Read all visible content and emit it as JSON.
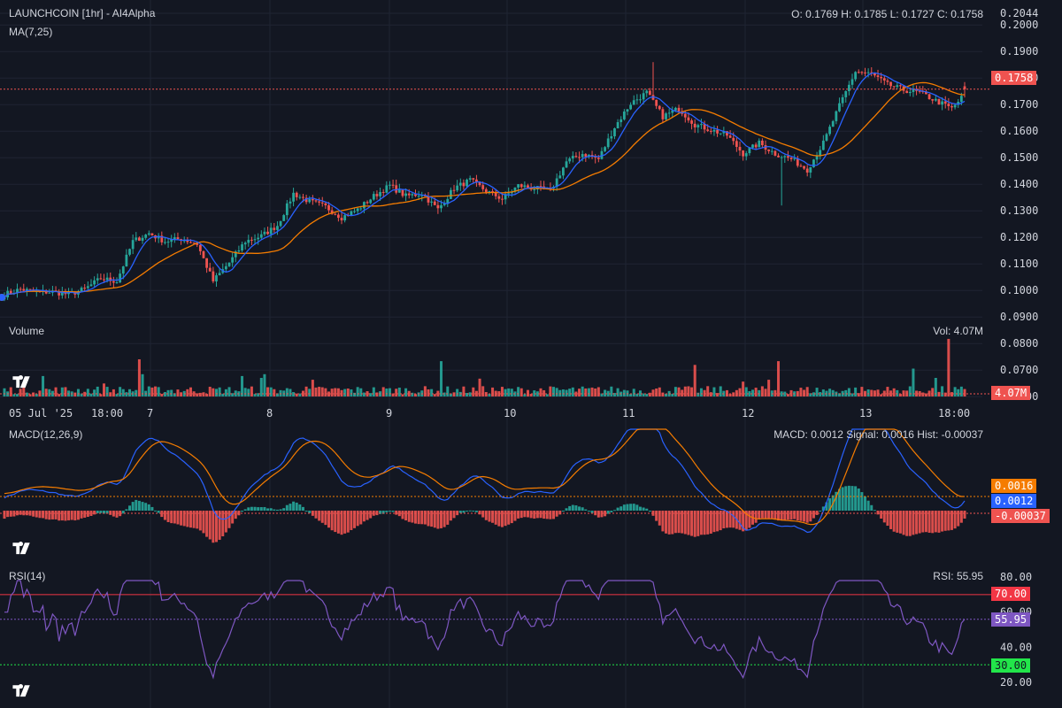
{
  "header": {
    "title": "LAUNCHCOIN [1hr] - AI4Alpha",
    "ma_label": "MA(7,25)",
    "ohlc": "O: 0.1769 H: 0.1785 L: 0.1727 C: 0.1758"
  },
  "colors": {
    "background": "#131722",
    "grid": "#1f2433",
    "up": "#26a69a",
    "down": "#ef5350",
    "ma7": "#2962ff",
    "ma25": "#f57c00",
    "macd_line": "#2962ff",
    "signal_line": "#f57c00",
    "rsi_line": "#7e57c2",
    "rsi_upper": "#f23645",
    "rsi_lower": "#22ab94",
    "text": "#d1d4dc"
  },
  "chart_data": [
    {
      "id": "price",
      "type": "candlestick",
      "title": "LAUNCHCOIN [1hr] - AI4Alpha",
      "indicator": "MA(7,25)",
      "series_names": [
        "MA(7)",
        "MA(25)"
      ],
      "ohlc_last": {
        "open": 0.1769,
        "high": 0.1785,
        "low": 0.1727,
        "close": 0.1758
      },
      "last_price_label": "0.1758",
      "y_ticks": [
        "0.2044",
        "0.2000",
        "0.1900",
        "0.1800",
        "0.1700",
        "0.1600",
        "0.1500",
        "0.1400",
        "0.1300",
        "0.1200",
        "0.1100",
        "0.1000",
        "0.0900",
        "0.0800",
        "0.0700",
        "0.0600"
      ],
      "ylim": [
        0.06,
        0.2044
      ],
      "x_labels": [
        "05 Jul '25",
        "18:00",
        "7",
        "8",
        "9",
        "10",
        "11",
        "12",
        "13",
        "18:00"
      ],
      "close_anchors": [
        [
          0,
          0.0985
        ],
        [
          5,
          0.1005
        ],
        [
          10,
          0.0993
        ],
        [
          15,
          0.0995
        ],
        [
          20,
          0.0985
        ],
        [
          25,
          0.1005
        ],
        [
          30,
          0.1045
        ],
        [
          35,
          0.1035
        ],
        [
          40,
          0.1185
        ],
        [
          45,
          0.1215
        ],
        [
          50,
          0.1185
        ],
        [
          55,
          0.1195
        ],
        [
          60,
          0.1175
        ],
        [
          65,
          0.1035
        ],
        [
          70,
          0.1105
        ],
        [
          75,
          0.1185
        ],
        [
          80,
          0.1205
        ],
        [
          85,
          0.1245
        ],
        [
          90,
          0.1365
        ],
        [
          95,
          0.1335
        ],
        [
          100,
          0.1315
        ],
        [
          105,
          0.1275
        ],
        [
          110,
          0.1305
        ],
        [
          115,
          0.1355
        ],
        [
          120,
          0.1395
        ],
        [
          125,
          0.1355
        ],
        [
          130,
          0.1365
        ],
        [
          135,
          0.1305
        ],
        [
          140,
          0.1385
        ],
        [
          145,
          0.1415
        ],
        [
          150,
          0.1375
        ],
        [
          155,
          0.1345
        ],
        [
          160,
          0.1395
        ],
        [
          165,
          0.1385
        ],
        [
          170,
          0.1375
        ],
        [
          175,
          0.1485
        ],
        [
          180,
          0.1515
        ],
        [
          185,
          0.1495
        ],
        [
          190,
          0.1615
        ],
        [
          195,
          0.1705
        ],
        [
          200,
          0.1745
        ],
        [
          205,
          0.1655
        ],
        [
          210,
          0.1685
        ],
        [
          215,
          0.1625
        ],
        [
          220,
          0.1605
        ],
        [
          225,
          0.1585
        ],
        [
          230,
          0.1515
        ],
        [
          235,
          0.1555
        ],
        [
          240,
          0.1515
        ],
        [
          245,
          0.1495
        ],
        [
          250,
          0.1455
        ],
        [
          255,
          0.1555
        ],
        [
          260,
          0.1695
        ],
        [
          265,
          0.1825
        ],
        [
          270,
          0.1815
        ],
        [
          275,
          0.1775
        ],
        [
          280,
          0.1755
        ],
        [
          285,
          0.1745
        ],
        [
          290,
          0.1715
        ],
        [
          295,
          0.1685
        ],
        [
          298,
          0.1725
        ],
        [
          299,
          0.1758
        ]
      ]
    },
    {
      "id": "volume",
      "type": "bar",
      "title": "Volume",
      "readout": "Vol: 4.07M",
      "last_label": "4.07M",
      "spike_bars": [
        [
          12,
          0.55
        ],
        [
          31,
          0.35
        ],
        [
          42,
          1.0
        ],
        [
          43,
          0.6
        ],
        [
          74,
          0.55
        ],
        [
          80,
          0.5
        ],
        [
          81,
          0.6
        ],
        [
          96,
          0.45
        ],
        [
          136,
          0.95
        ],
        [
          148,
          0.48
        ],
        [
          215,
          0.85
        ],
        [
          230,
          0.4
        ],
        [
          241,
          0.95
        ],
        [
          238,
          0.45
        ],
        [
          283,
          0.75
        ],
        [
          290,
          0.5
        ],
        [
          294,
          1.55
        ],
        [
          299,
          0.2
        ]
      ]
    },
    {
      "id": "macd",
      "type": "line",
      "title": "MACD(12,26,9)",
      "readout": "MACD: 0.0012 Signal: 0.0016 Hist: -0.00037",
      "series_names": [
        "MACD",
        "Signal",
        "Hist"
      ],
      "values_last": {
        "macd": 0.0012,
        "signal": 0.0016,
        "hist": -0.00037
      },
      "labels": [
        "0.0016",
        "0.0012",
        "-0.00037"
      ]
    },
    {
      "id": "rsi",
      "type": "line",
      "title": "RSI(14)",
      "readout": "RSI: 55.95",
      "y_ticks": [
        "80.00",
        "60.00",
        "40.00",
        "20.00"
      ],
      "ylim": [
        20,
        80
      ],
      "levels": {
        "upper": 70,
        "lower": 30
      },
      "level_labels": [
        "70.00",
        "30.00"
      ],
      "last_value": 55.95,
      "last_label": "55.95"
    }
  ]
}
